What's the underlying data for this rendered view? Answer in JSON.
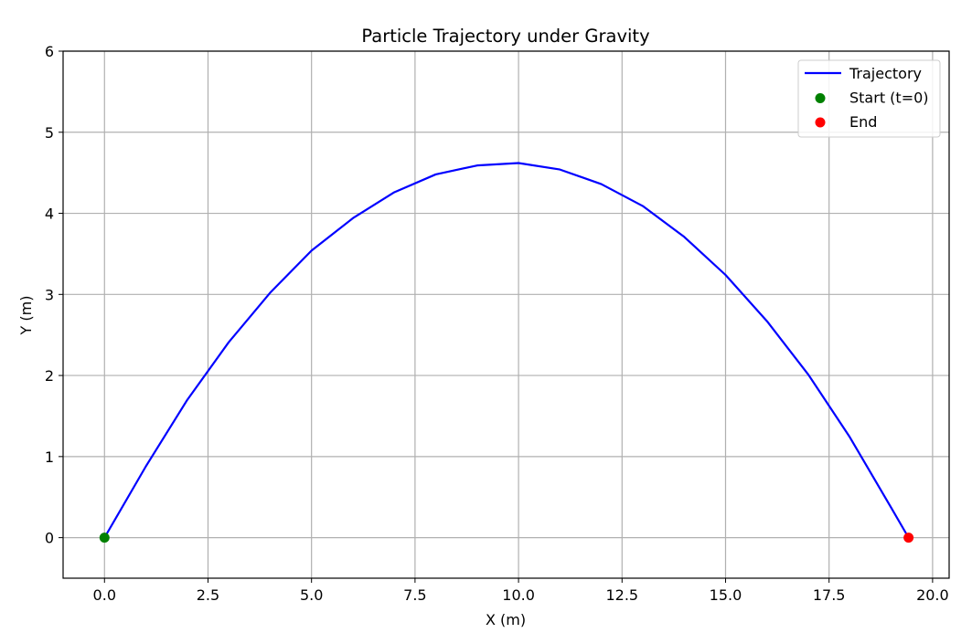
{
  "chart_data": {
    "type": "line",
    "title": "Particle Trajectory under Gravity",
    "xlabel": "X (m)",
    "ylabel": "Y (m)",
    "xlim": [
      -1.0,
      20.4
    ],
    "ylim": [
      -0.5,
      6.0
    ],
    "xticks": [
      0.0,
      2.5,
      5.0,
      7.5,
      10.0,
      12.5,
      15.0,
      17.5,
      20.0
    ],
    "xtick_labels": [
      "0.0",
      "2.5",
      "5.0",
      "7.5",
      "10.0",
      "12.5",
      "15.0",
      "17.5",
      "20.0"
    ],
    "yticks": [
      0,
      1,
      2,
      3,
      4,
      5,
      6
    ],
    "ytick_labels": [
      "0",
      "1",
      "2",
      "3",
      "4",
      "5",
      "6"
    ],
    "grid": true,
    "legend": "top-right",
    "series": [
      {
        "name": "Trajectory",
        "kind": "line",
        "color": "#0000ff",
        "x": [
          0,
          1,
          2,
          3,
          4,
          5,
          6,
          7,
          8,
          9,
          10,
          11,
          12,
          13,
          14,
          15,
          16,
          17,
          18,
          19,
          19.42
        ],
        "y": [
          0,
          0.88,
          1.7,
          2.41,
          3.02,
          3.54,
          3.94,
          4.26,
          4.48,
          4.59,
          4.62,
          4.54,
          4.36,
          4.09,
          3.71,
          3.24,
          2.67,
          2.01,
          1.24,
          0.37,
          0
        ]
      },
      {
        "name": "Start (t=0)",
        "kind": "scatter",
        "color": "#008000",
        "x": [
          0
        ],
        "y": [
          0
        ]
      },
      {
        "name": "End",
        "kind": "scatter",
        "color": "#ff0000",
        "x": [
          19.42
        ],
        "y": [
          0
        ]
      }
    ]
  }
}
